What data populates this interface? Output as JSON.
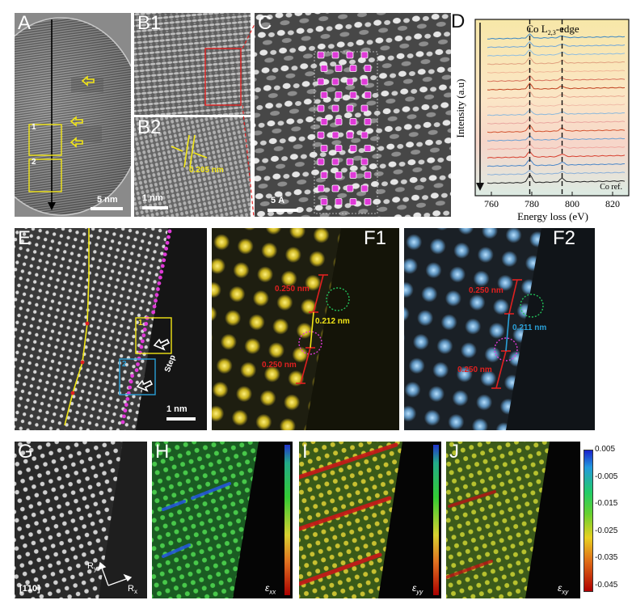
{
  "panels": {
    "A": {
      "label": "A",
      "scalebar": "5 nm",
      "box1": "1",
      "box2": "2"
    },
    "B1": {
      "label": "B1"
    },
    "B2": {
      "label": "B2",
      "scalebar": "1 nm",
      "spacing": "0.205 nm"
    },
    "C": {
      "label": "C",
      "scalebar": "5 Å"
    },
    "D": {
      "label": "D",
      "title": "Co L2,3-edge",
      "ylabel": "Intensity (a.u)",
      "xlabel": "Energy loss (eV)",
      "ref_label": "Co ref.",
      "xticks": [
        "760",
        "780",
        "800",
        "820"
      ]
    },
    "E": {
      "label": "E",
      "scalebar": "1 nm",
      "box1": "1",
      "box2": "2",
      "step": "Step"
    },
    "F1": {
      "label": "F1",
      "d_top": "0.250 nm",
      "d_mid": "0.212 nm",
      "d_bot": "0.250 nm"
    },
    "F2": {
      "label": "F2",
      "d_top": "0.250 nm",
      "d_mid": "0.211 nm",
      "d_bot": "0.250 nm"
    },
    "G": {
      "label": "G",
      "zone": "[1̄10]",
      "ry": "R",
      "ry_sub": "y",
      "rx": "R",
      "rx_sub": "x"
    },
    "H": {
      "label": "H",
      "strain": "ε",
      "strain_sub": "xx"
    },
    "I": {
      "label": "I",
      "strain": "ε",
      "strain_sub": "yy"
    },
    "J": {
      "label": "J",
      "strain": "ε",
      "strain_sub": "xy"
    }
  },
  "colorbar": {
    "ticks": [
      "0.005",
      "-0.005",
      "-0.015",
      "-0.025",
      "-0.035",
      "-0.045"
    ]
  },
  "chart_data": {
    "type": "line",
    "title": "Co L2,3-edge",
    "xlabel": "Energy loss (eV)",
    "ylabel": "Intensity (a.u)",
    "xlim": [
      752,
      828
    ],
    "xticks": [
      760,
      780,
      800,
      820
    ],
    "reference_lines_eV": [
      779,
      795
    ],
    "peaks_eV": [
      779,
      795
    ],
    "series_count": 18,
    "bottom_series": "Co ref."
  },
  "colors": {
    "accent_yellow": "#f2e616",
    "marker_magenta": "#e03ad8",
    "box_cyan": "#2a9fd6",
    "measure_red": "#e02020"
  }
}
